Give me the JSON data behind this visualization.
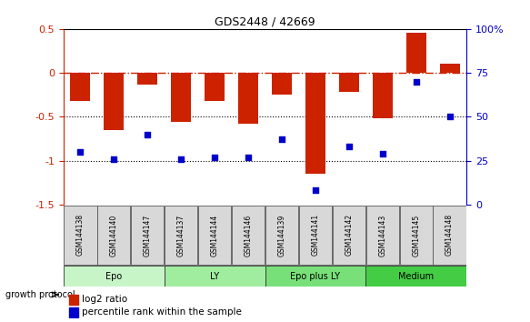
{
  "title": "GDS2448 / 42669",
  "samples": [
    "GSM144138",
    "GSM144140",
    "GSM144147",
    "GSM144137",
    "GSM144144",
    "GSM144146",
    "GSM144139",
    "GSM144141",
    "GSM144142",
    "GSM144143",
    "GSM144145",
    "GSM144148"
  ],
  "log2_ratio": [
    -0.32,
    -0.65,
    -0.13,
    -0.56,
    -0.32,
    -0.58,
    -0.25,
    -1.15,
    -0.22,
    -0.52,
    0.46,
    0.1
  ],
  "pct_rank": [
    30,
    26,
    40,
    26,
    27,
    27,
    37,
    8,
    33,
    29,
    70,
    50
  ],
  "groups": [
    {
      "label": "Epo",
      "start": 0,
      "end": 3,
      "color": "#c8f5c8"
    },
    {
      "label": "LY",
      "start": 3,
      "end": 6,
      "color": "#a0eda0"
    },
    {
      "label": "Epo plus LY",
      "start": 6,
      "end": 9,
      "color": "#78e078"
    },
    {
      "label": "Medium",
      "start": 9,
      "end": 12,
      "color": "#44cc44"
    }
  ],
  "bar_color": "#cc2200",
  "dot_color": "#0000cc",
  "ylim_left": [
    -1.5,
    0.5
  ],
  "ylim_right": [
    0,
    100
  ],
  "yticks_left": [
    -1.5,
    -1.0,
    -0.5,
    0.0,
    0.5
  ],
  "ytick_labels_left": [
    "-1.5",
    "-1",
    "-0.5",
    "0",
    "0.5"
  ],
  "yticks_right": [
    0,
    25,
    50,
    75,
    100
  ],
  "ytick_labels_right": [
    "0",
    "25",
    "50",
    "75",
    "100%"
  ],
  "growth_protocol_label": "growth protocol",
  "legend_log2": "log2 ratio",
  "legend_pct": "percentile rank within the sample",
  "sample_box_color": "#d8d8d8"
}
